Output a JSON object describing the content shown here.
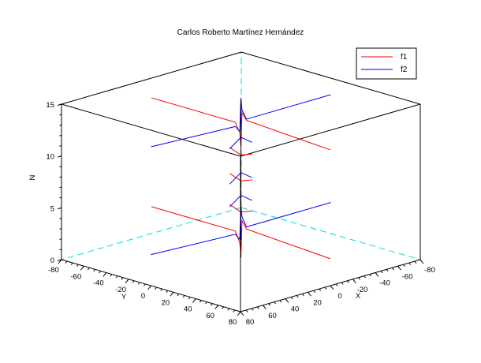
{
  "chart_data": {
    "type": "line",
    "title": "Carlos Roberto Martínez Hernández",
    "xlabel": "X",
    "ylabel": "Y",
    "zlabel": "N",
    "xlim": [
      -80,
      80
    ],
    "ylim": [
      -80,
      80
    ],
    "zlim": [
      0,
      15
    ],
    "x_ticks": [
      "80",
      "60",
      "40",
      "20",
      "0",
      "-20",
      "-40",
      "-60",
      "-80"
    ],
    "y_ticks": [
      "-80",
      "-60",
      "-40",
      "-20",
      "0",
      "20",
      "40",
      "60",
      "80"
    ],
    "z_ticks": [
      "0",
      "5",
      "10",
      "15"
    ],
    "legend_position": "top-right",
    "colors": {
      "f1": "#ff0000",
      "f2": "#0000ff",
      "hidden_box_edge": "#00dddd",
      "box": "#000000"
    },
    "series": [
      {
        "name": "f1",
        "color": "#ff0000",
        "segments": [
          {
            "note_axis": "y",
            "z": 2.6,
            "points": [
              [
                0,
                -80
              ],
              [
                0,
                -5
              ],
              [
                0,
                -1
              ],
              [
                0,
                0
              ],
              [
                0,
                1
              ],
              [
                0,
                5
              ],
              [
                0,
                80
              ]
            ],
            "z_points": [
              2.6,
              2.6,
              1.6,
              0.2,
              3.8,
              3.1,
              2.6
            ]
          },
          {
            "note_axis": "y",
            "z": 13.1,
            "points": [
              [
                0,
                -80
              ],
              [
                0,
                -5
              ],
              [
                0,
                -1
              ],
              [
                0,
                0
              ],
              [
                0,
                1
              ],
              [
                0,
                5
              ],
              [
                0,
                80
              ]
            ],
            "z_points": [
              13.1,
              13.1,
              12.2,
              10.9,
              14.2,
              13.6,
              13.1
            ]
          },
          {
            "note_axis": "y",
            "z": 5.0,
            "points": [
              [
                0,
                -10
              ],
              [
                0,
                0
              ],
              [
                0,
                10
              ]
            ],
            "z_points": [
              5.0,
              4.6,
              5.0
            ]
          },
          {
            "note_axis": "y",
            "z": 8.0,
            "points": [
              [
                0,
                -10
              ],
              [
                0,
                0
              ],
              [
                0,
                10
              ]
            ],
            "z_points": [
              8.0,
              7.6,
              8.0
            ]
          },
          {
            "note_axis": "y",
            "z": 10.5,
            "points": [
              [
                0,
                -10
              ],
              [
                0,
                0
              ],
              [
                0,
                10
              ]
            ],
            "z_points": [
              10.5,
              10.1,
              10.5
            ]
          }
        ]
      },
      {
        "name": "f2",
        "color": "#0000ff",
        "segments": [
          {
            "note_axis": "x",
            "z": 3.0,
            "points": [
              [
                -80,
                0
              ],
              [
                -5,
                0
              ],
              [
                -1,
                0
              ],
              [
                0,
                0
              ],
              [
                1,
                0
              ],
              [
                5,
                0
              ],
              [
                80,
                0
              ]
            ],
            "z_points": [
              3.0,
              3.0,
              4.1,
              5.2,
              2.0,
              2.6,
              3.0
            ]
          },
          {
            "note_axis": "x",
            "z": 13.4,
            "points": [
              [
                -80,
                0
              ],
              [
                -5,
                0
              ],
              [
                -1,
                0
              ],
              [
                0,
                0
              ],
              [
                1,
                0
              ],
              [
                5,
                0
              ],
              [
                80,
                0
              ]
            ],
            "z_points": [
              13.4,
              13.4,
              14.4,
              15.6,
              12.4,
              13.0,
              13.4
            ]
          },
          {
            "note_axis": "x",
            "z": 5.4,
            "points": [
              [
                -10,
                0
              ],
              [
                0,
                0
              ],
              [
                10,
                0
              ]
            ],
            "z_points": [
              5.4,
              6.2,
              5.4
            ]
          },
          {
            "note_axis": "x",
            "z": 7.6,
            "points": [
              [
                -10,
                0
              ],
              [
                0,
                0
              ],
              [
                10,
                0
              ]
            ],
            "z_points": [
              7.6,
              8.4,
              7.6
            ]
          },
          {
            "note_axis": "x",
            "z": 11.0,
            "points": [
              [
                -10,
                0
              ],
              [
                0,
                0
              ],
              [
                10,
                0
              ]
            ],
            "z_points": [
              11.0,
              11.8,
              11.0
            ]
          }
        ]
      }
    ]
  }
}
